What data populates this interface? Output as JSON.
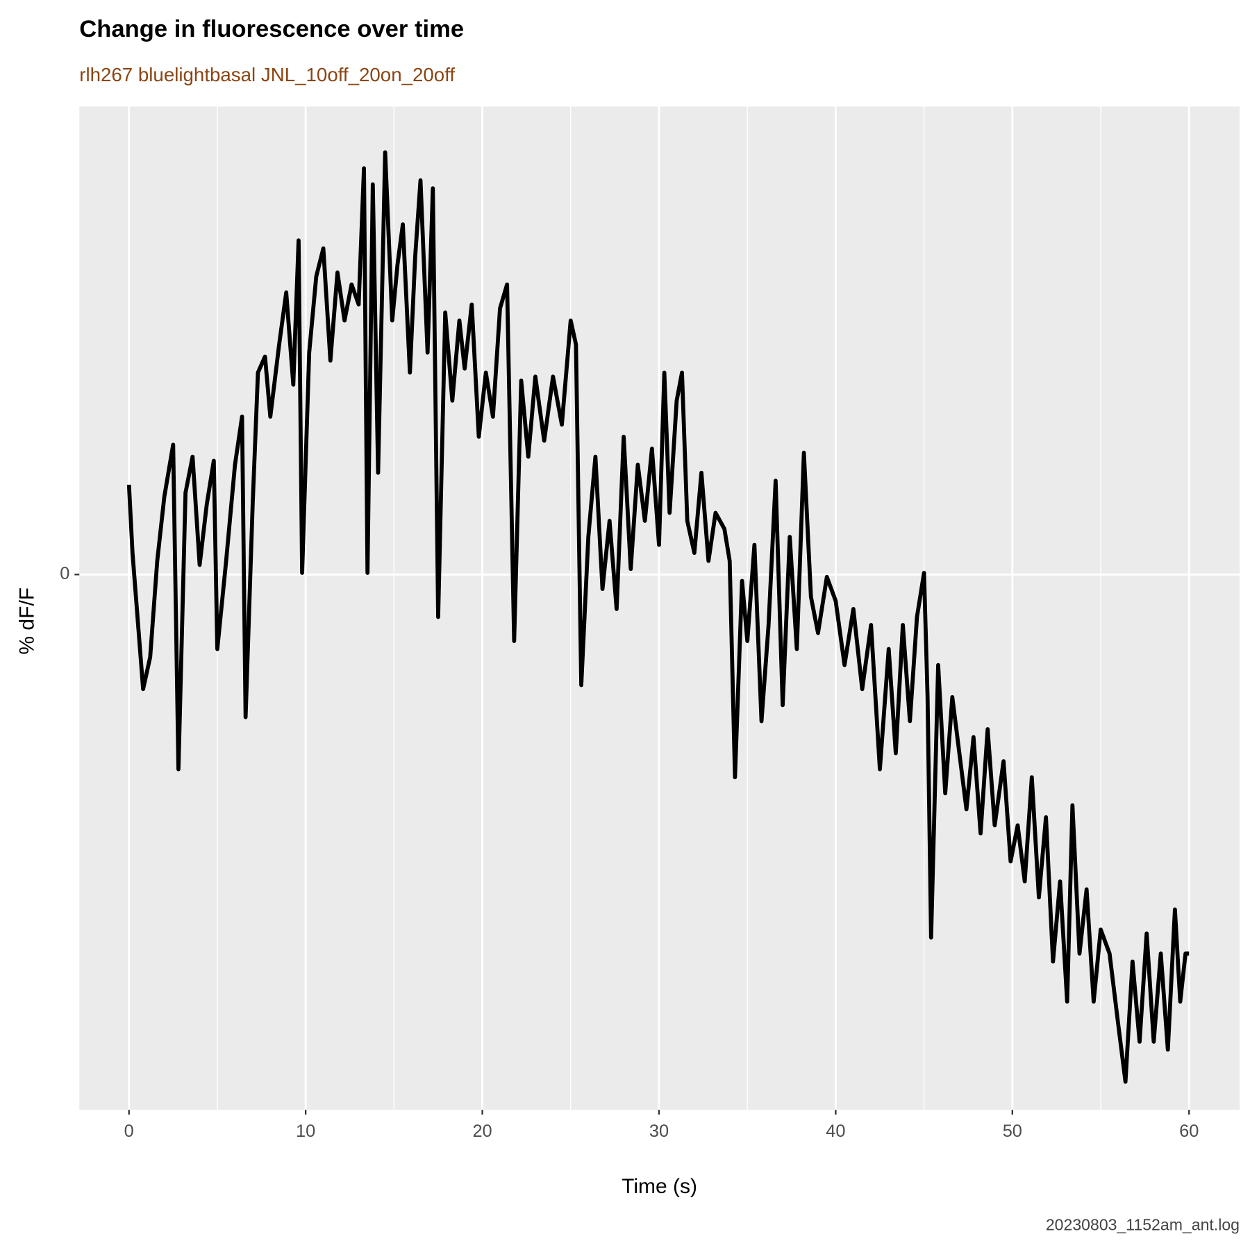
{
  "chart_data": {
    "type": "line",
    "title": "Change in fluorescence over time",
    "subtitle": "rlh267 bluelightbasal JNL_10off_20on_20off",
    "caption": "20230803_1152am_ant.log",
    "x_label": "Time (s)",
    "y_label": "% dF/F",
    "x": [
      0,
      0.2,
      0.5,
      0.8,
      1.2,
      1.6,
      2.0,
      2.5,
      2.8,
      3.2,
      3.6,
      4.0,
      4.4,
      4.8,
      5.0,
      5.5,
      6.0,
      6.4,
      6.6,
      7.0,
      7.3,
      7.7,
      8.0,
      8.5,
      8.9,
      9.3,
      9.6,
      9.8,
      10.2,
      10.6,
      11.0,
      11.4,
      11.8,
      12.2,
      12.6,
      13.0,
      13.3,
      13.5,
      13.8,
      14.1,
      14.5,
      14.9,
      15.2,
      15.5,
      15.9,
      16.2,
      16.5,
      16.9,
      17.2,
      17.5,
      17.9,
      18.3,
      18.7,
      19.0,
      19.4,
      19.8,
      20.2,
      20.6,
      21.0,
      21.4,
      21.8,
      22.2,
      22.6,
      23.0,
      23.5,
      24.0,
      24.5,
      25.0,
      25.3,
      25.6,
      26.0,
      26.4,
      26.8,
      27.2,
      27.6,
      28.0,
      28.4,
      28.8,
      29.2,
      29.6,
      30.0,
      30.3,
      30.6,
      31.0,
      31.3,
      31.6,
      32.0,
      32.4,
      32.8,
      33.2,
      33.7,
      34.0,
      34.3,
      34.7,
      35.0,
      35.4,
      35.8,
      36.2,
      36.6,
      37.0,
      37.4,
      37.8,
      38.2,
      38.6,
      39.0,
      39.5,
      40.0,
      40.5,
      41.0,
      41.5,
      42.0,
      42.5,
      43.0,
      43.4,
      43.8,
      44.2,
      44.6,
      45.0,
      45.2,
      45.4,
      45.8,
      46.2,
      46.6,
      47.0,
      47.4,
      47.8,
      48.2,
      48.6,
      49.0,
      49.5,
      49.9,
      50.3,
      50.7,
      51.1,
      51.5,
      51.9,
      52.3,
      52.7,
      53.1,
      53.4,
      53.8,
      54.2,
      54.6,
      55.0,
      55.5,
      56.0,
      56.4,
      56.8,
      57.2,
      57.6,
      58.0,
      58.4,
      58.8,
      59.2,
      59.5,
      59.8,
      60.0
    ],
    "series": [
      {
        "color": "#000000",
        "values": [
          1.12,
          0.27,
          -0.58,
          -1.43,
          -1.03,
          0.17,
          0.97,
          1.62,
          -2.43,
          1.02,
          1.47,
          0.12,
          0.87,
          1.42,
          -0.93,
          0.17,
          1.37,
          1.97,
          -1.78,
          0.87,
          2.52,
          2.72,
          1.97,
          2.87,
          3.52,
          2.37,
          4.17,
          0.02,
          2.77,
          3.72,
          4.07,
          2.67,
          3.77,
          3.17,
          3.62,
          3.37,
          5.07,
          0.02,
          4.87,
          1.27,
          5.27,
          3.17,
          3.87,
          4.37,
          2.52,
          3.97,
          4.92,
          2.77,
          4.82,
          -0.53,
          3.27,
          2.17,
          3.17,
          2.57,
          3.37,
          1.72,
          2.52,
          1.97,
          3.32,
          3.62,
          -0.83,
          2.42,
          1.47,
          2.47,
          1.67,
          2.47,
          1.87,
          3.17,
          2.87,
          -1.38,
          0.47,
          1.47,
          -0.18,
          0.67,
          -0.43,
          1.72,
          0.07,
          1.37,
          0.67,
          1.57,
          0.37,
          2.52,
          0.77,
          2.17,
          2.52,
          0.67,
          0.27,
          1.27,
          0.17,
          0.77,
          0.57,
          0.17,
          -2.53,
          -0.08,
          -0.83,
          0.37,
          -1.83,
          -0.63,
          1.17,
          -1.63,
          0.47,
          -0.93,
          1.52,
          -0.28,
          -0.73,
          -0.03,
          -0.33,
          -1.13,
          -0.43,
          -1.43,
          -0.63,
          -2.43,
          -0.93,
          -2.23,
          -0.63,
          -1.83,
          -0.53,
          0.02,
          -1.53,
          -4.53,
          -1.13,
          -2.73,
          -1.53,
          -2.23,
          -2.93,
          -2.03,
          -3.23,
          -1.93,
          -3.13,
          -2.33,
          -3.58,
          -3.13,
          -3.83,
          -2.53,
          -4.03,
          -3.03,
          -4.83,
          -3.83,
          -5.33,
          -2.88,
          -4.73,
          -3.93,
          -5.33,
          -4.43,
          -4.73,
          -5.63,
          -6.33,
          -4.83,
          -5.83,
          -4.48,
          -5.83,
          -4.73,
          -5.93,
          -4.18,
          -5.33,
          -4.73,
          -4.73
        ]
      }
    ],
    "xlim": [
      -2.81,
      62.86
    ],
    "xticks": [
      0,
      10,
      20,
      30,
      40,
      50,
      60
    ],
    "xminor": [
      5,
      15,
      25,
      35,
      45,
      55
    ],
    "ylim": [
      -6.68,
      5.84
    ],
    "yticks": [
      0
    ],
    "grid": true
  }
}
